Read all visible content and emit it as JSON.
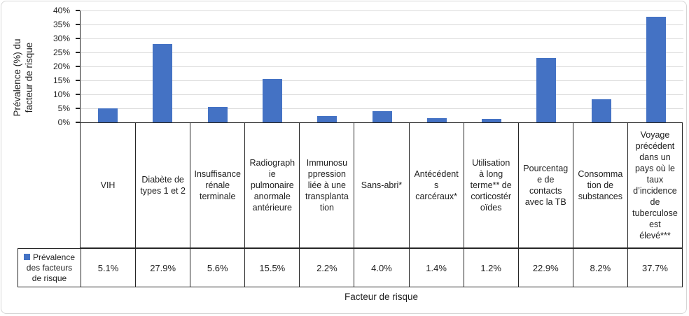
{
  "frame": {
    "background": "#ffffff",
    "border_color": "#d6d6d6"
  },
  "chart_data": {
    "type": "bar",
    "title": "",
    "xlabel": "Facteur de risque",
    "ylabel": "Prévalence (%) du facteur de risque",
    "ylabel_display": "Prévalence (%) du\nfacteur de risque",
    "ylim": [
      0,
      40
    ],
    "ytick_step": 5,
    "ytick_labels": [
      "0%",
      "5%",
      "10%",
      "15%",
      "20%",
      "25%",
      "30%",
      "35%",
      "40%"
    ],
    "grid": true,
    "gridline_color": "#d9d9d9",
    "axis_color": "#262626",
    "bar_color": "#4472c4",
    "legend_position": "table-row-left",
    "categories": [
      "VIH",
      "Diabète de types 1 et 2",
      "Insuffisance rénale terminale",
      "Radiographie pulmonaire anormale antérieure",
      "Immunosuppression liée à une transplantation",
      "Sans-abri*",
      "Antécédents carcéraux*",
      "Utilisation à long terme** de corticostéroïdes",
      "Pourcentage de contacts avec la TB",
      "Consommation de substances",
      "Voyage précédent dans un pays où le taux d’incidence de tuberculose est élevé***"
    ],
    "categories_display": [
      "VIH",
      "Diabète de\ntypes 1 et 2",
      "Insuffisance\nrénale\nterminale",
      "Radiograph\nie\npulmonaire\nanormale\nantérieure",
      "Immunosu\nppression\nliée à une\ntransplanta\ntion",
      "Sans-abri*",
      "Antécédent\ns\ncarcéraux*",
      "Utilisation\nà long\nterme** de\ncorticostér\noïdes",
      "Pourcentag\ne de\ncontacts\navec la TB",
      "Consomma\ntion de\nsubstances",
      "Voyage\nprécédent\ndans un\npays où le\ntaux\nd’incidence\nde\ntuberculose\nest\nélevé***"
    ],
    "series": [
      {
        "name": "Prévalence des facteurs de risque",
        "name_display": "Prévalence\ndes facteurs\nde risque",
        "values": [
          5.1,
          27.9,
          5.6,
          15.5,
          2.2,
          4.0,
          1.4,
          1.2,
          22.9,
          8.2,
          37.7
        ],
        "value_labels": [
          "5.1%",
          "27.9%",
          "5.6%",
          "15.5%",
          "2.2%",
          "4.0%",
          "1.4%",
          "1.2%",
          "22.9%",
          "8.2%",
          "37.7%"
        ]
      }
    ]
  }
}
